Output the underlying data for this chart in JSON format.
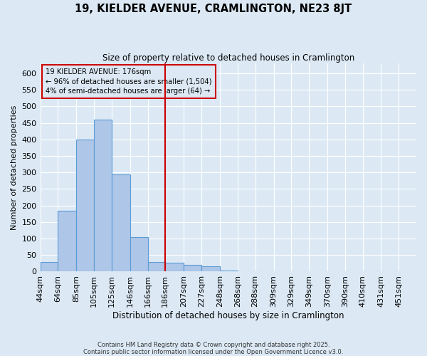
{
  "title": "19, KIELDER AVENUE, CRAMLINGTON, NE23 8JT",
  "subtitle": "Size of property relative to detached houses in Cramlington",
  "xlabel": "Distribution of detached houses by size in Cramlington",
  "ylabel": "Number of detached properties",
  "property_label": "19 KIELDER AVENUE: 176sqm",
  "annotation_left": "← 96% of detached houses are smaller (1,504)",
  "annotation_right": "4% of semi-detached houses are larger (64) →",
  "bins": [
    44,
    64,
    85,
    105,
    125,
    146,
    166,
    186,
    207,
    227,
    248,
    268,
    288,
    309,
    329,
    349,
    370,
    390,
    410,
    431,
    451,
    471
  ],
  "counts": [
    30,
    185,
    400,
    460,
    295,
    105,
    30,
    27,
    20,
    15,
    4,
    1,
    0,
    0,
    1,
    0,
    0,
    0,
    1,
    0,
    1
  ],
  "bar_color": "#aec6e8",
  "bar_edge_color": "#5b9bd5",
  "vline_color": "#cc0000",
  "vline_x": 186,
  "box_color": "#cc0000",
  "background_color": "#dce9f5",
  "grid_color": "#ffffff",
  "ylim": [
    0,
    630
  ],
  "yticks": [
    0,
    50,
    100,
    150,
    200,
    250,
    300,
    350,
    400,
    450,
    500,
    550,
    600
  ],
  "tick_labels": [
    "44sqm",
    "64sqm",
    "85sqm",
    "105sqm",
    "125sqm",
    "146sqm",
    "166sqm",
    "186sqm",
    "207sqm",
    "227sqm",
    "248sqm",
    "268sqm",
    "288sqm",
    "309sqm",
    "329sqm",
    "349sqm",
    "370sqm",
    "390sqm",
    "410sqm",
    "431sqm",
    "451sqm"
  ],
  "footer": "Contains HM Land Registry data © Crown copyright and database right 2025.\nContains public sector information licensed under the Open Government Licence v3.0.",
  "figsize": [
    6.0,
    5.0
  ],
  "dpi": 100
}
